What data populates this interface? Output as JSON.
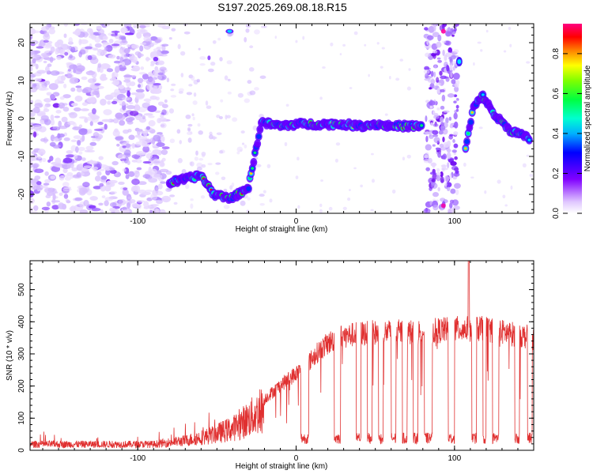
{
  "title": "S197.2025.269.08.18.R15",
  "chart_data": [
    {
      "type": "heatmap",
      "xlabel": "Height of straight line (km)",
      "ylabel": "Frequency (Hz)",
      "xlim": [
        -168,
        150
      ],
      "ylim": [
        -25,
        25
      ],
      "xticks": [
        "-100",
        "0",
        "100"
      ],
      "xtick_values": [
        -100,
        0,
        100
      ],
      "yticks": [
        "-20",
        "-10",
        "0",
        "10",
        "20"
      ],
      "ytick_values": [
        -20,
        -10,
        0,
        10,
        20
      ],
      "colorbar": {
        "label": "Normalized spectral amplitude",
        "range": [
          0,
          0.95
        ],
        "ticks": [
          "0.0",
          "0.2",
          "0.4",
          "0.6",
          "0.8"
        ],
        "tick_values": [
          0,
          0.2,
          0.4,
          0.6,
          0.8
        ],
        "colormap": [
          "#f0f0ff",
          "#c8a0ff",
          "#8000ff",
          "#0000ff",
          "#00c0ff",
          "#00ff80",
          "#80ff00",
          "#ffff00",
          "#ff8000",
          "#ff0000",
          "#ff0080"
        ]
      },
      "ridge": [
        {
          "x": -80,
          "y": -17
        },
        {
          "x": -70,
          "y": -16
        },
        {
          "x": -60,
          "y": -15
        },
        {
          "x": -52,
          "y": -20
        },
        {
          "x": -40,
          "y": -21
        },
        {
          "x": -30,
          "y": -18
        },
        {
          "x": -22,
          "y": -1
        },
        {
          "x": -10,
          "y": -2
        },
        {
          "x": 0,
          "y": -1.5
        },
        {
          "x": 10,
          "y": -1.5
        },
        {
          "x": 20,
          "y": -1.5
        },
        {
          "x": 30,
          "y": -1.5
        },
        {
          "x": 40,
          "y": -2
        },
        {
          "x": 50,
          "y": -1.5
        },
        {
          "x": 60,
          "y": -2
        },
        {
          "x": 70,
          "y": -2
        },
        {
          "x": 80,
          "y": -2
        },
        {
          "x": 107,
          "y": -8
        },
        {
          "x": 112,
          "y": 3
        },
        {
          "x": 118,
          "y": 6
        },
        {
          "x": 125,
          "y": 1
        },
        {
          "x": 135,
          "y": -3
        },
        {
          "x": 148,
          "y": -5.5
        }
      ]
    },
    {
      "type": "line",
      "xlabel": "Height of straight line (km)",
      "ylabel": "SNR (10 * v/v)",
      "xlim": [
        -168,
        150
      ],
      "ylim": [
        0,
        590
      ],
      "xticks": [
        "-100",
        "0",
        "100"
      ],
      "xtick_values": [
        -100,
        0,
        100
      ],
      "yticks": [
        "0",
        "100",
        "200",
        "300",
        "400",
        "500"
      ],
      "ytick_values": [
        0,
        100,
        200,
        300,
        400,
        500
      ],
      "color": "#e03030",
      "envelope": [
        {
          "x": -168,
          "y": 25
        },
        {
          "x": -90,
          "y": 25
        },
        {
          "x": -70,
          "y": 40
        },
        {
          "x": -55,
          "y": 60
        },
        {
          "x": -40,
          "y": 90
        },
        {
          "x": -25,
          "y": 150
        },
        {
          "x": -10,
          "y": 220
        },
        {
          "x": 5,
          "y": 280
        },
        {
          "x": 15,
          "y": 340
        },
        {
          "x": 25,
          "y": 380
        },
        {
          "x": 40,
          "y": 395
        },
        {
          "x": 60,
          "y": 400
        },
        {
          "x": 80,
          "y": 400
        },
        {
          "x": 100,
          "y": 410
        },
        {
          "x": 120,
          "y": 410
        },
        {
          "x": 140,
          "y": 390
        },
        {
          "x": 150,
          "y": 380
        }
      ],
      "dropout_regions": [
        {
          "x0": 3,
          "x1": 8
        },
        {
          "x0": 24,
          "x1": 28
        },
        {
          "x0": 38,
          "x1": 41
        },
        {
          "x0": 45,
          "x1": 48
        },
        {
          "x0": 52,
          "x1": 55
        },
        {
          "x0": 60,
          "x1": 63
        },
        {
          "x0": 67,
          "x1": 70
        },
        {
          "x0": 74,
          "x1": 77
        },
        {
          "x0": 81,
          "x1": 86
        },
        {
          "x0": 96,
          "x1": 100
        },
        {
          "x0": 111,
          "x1": 114
        },
        {
          "x0": 118,
          "x1": 120
        },
        {
          "x0": 124,
          "x1": 128
        },
        {
          "x0": 138,
          "x1": 141
        },
        {
          "x0": 146,
          "x1": 149
        }
      ],
      "peak": {
        "x": 109,
        "y": 590
      }
    }
  ]
}
